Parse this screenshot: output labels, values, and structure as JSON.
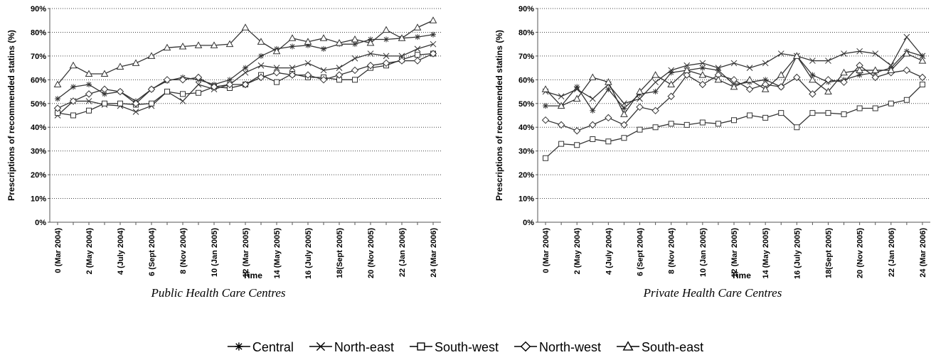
{
  "chart_data": [
    {
      "type": "line",
      "title": "Public Health Care Centres",
      "xlabel": "Time",
      "ylabel": "Prescriptions of recommended statins (%)",
      "categories": [
        "0 (Mar 2004)",
        null,
        "2 (May 2004)",
        null,
        "4 (July 2004)",
        null,
        "6 (Sept 2004)",
        null,
        "8 (Nov 2004)",
        null,
        "10 (Jan 2005)",
        null,
        "12 (Mar 2005)",
        null,
        "14 (May 2005)",
        null,
        "16 (July 2005)",
        null,
        "18(Sept 2005)",
        null,
        "20 (Nov 2005)",
        null,
        "22 (Jan 2006)",
        null,
        "24 (Mar 2006)"
      ],
      "ylim": [
        0,
        90
      ],
      "yticks": [
        {
          "value": 0,
          "label": "0%"
        },
        {
          "value": 10,
          "label": "10%"
        },
        {
          "value": 20,
          "label": "20%"
        },
        {
          "value": 30,
          "label": "30%"
        },
        {
          "value": 40,
          "label": "40%"
        },
        {
          "value": 50,
          "label": "50%"
        },
        {
          "value": 60,
          "label": "60%"
        },
        {
          "value": 70,
          "label": "70%"
        },
        {
          "value": 80,
          "label": "80%"
        },
        {
          "value": 90,
          "label": "90%"
        }
      ],
      "grid": true,
      "series": [
        {
          "name": "Central",
          "marker": "star",
          "color": "#333333",
          "values": [
            52,
            57,
            58,
            54,
            55,
            51,
            56,
            59.5,
            61,
            60,
            58,
            60,
            65,
            70,
            73,
            74,
            74.5,
            73,
            75,
            75,
            77,
            77,
            77.5,
            78,
            79
          ]
        },
        {
          "name": "North-east",
          "marker": "x",
          "color": "#333333",
          "values": [
            45,
            51,
            51,
            49.5,
            49,
            46.5,
            49,
            55,
            51,
            58,
            56,
            58,
            63,
            66,
            65,
            65,
            67,
            64,
            65,
            69,
            71,
            70,
            70,
            73,
            75
          ]
        },
        {
          "name": "South-west",
          "marker": "square",
          "color": "#333333",
          "values": [
            46,
            45,
            47,
            50,
            50,
            49.5,
            50,
            55,
            54,
            54.5,
            57,
            56.5,
            58,
            62,
            59,
            62.5,
            61,
            61,
            60,
            60,
            65,
            66,
            68.5,
            70.5,
            71
          ]
        },
        {
          "name": "North-west",
          "marker": "diamond",
          "color": "#333333",
          "values": [
            48,
            51,
            54,
            56,
            55,
            50,
            56,
            60,
            60,
            61,
            57,
            58,
            58,
            61,
            63,
            62,
            62,
            60,
            62,
            64,
            66,
            67,
            68,
            68,
            71
          ]
        },
        {
          "name": "South-east",
          "marker": "triangle",
          "color": "#333333",
          "values": [
            58,
            66,
            62.5,
            62.5,
            65.5,
            67,
            70,
            73.5,
            74,
            74.5,
            74.5,
            75,
            82,
            76,
            72,
            77.5,
            76,
            77.5,
            75.5,
            77,
            75.5,
            81,
            77.5,
            82,
            85
          ]
        }
      ]
    },
    {
      "type": "line",
      "title": "Private Health Care Centres",
      "xlabel": "Time",
      "ylabel": "Prescriptions of recommended statins (%)",
      "categories": [
        "0 (Mar 2004)",
        null,
        "2 (May 2004)",
        null,
        "4 (July 2004)",
        null,
        "6 (Sept 2004)",
        null,
        "8 (Nov 2004)",
        null,
        "10 (Jan 2005)",
        null,
        "12 (Mar 2005)",
        null,
        "14 (May 2005)",
        null,
        "16 (July 2005)",
        null,
        "18(Sept 2005)",
        null,
        "20 (Nov 2005)",
        null,
        "22 (Jan 2006)",
        null,
        "24 (Mar 2006)"
      ],
      "ylim": [
        0,
        90
      ],
      "yticks": [
        {
          "value": 0,
          "label": "0%"
        },
        {
          "value": 10,
          "label": "10%"
        },
        {
          "value": 20,
          "label": "20%"
        },
        {
          "value": 30,
          "label": "30%"
        },
        {
          "value": 40,
          "label": "40%"
        },
        {
          "value": 50,
          "label": "50%"
        },
        {
          "value": 60,
          "label": "60%"
        },
        {
          "value": 70,
          "label": "70%"
        },
        {
          "value": 80,
          "label": "80%"
        },
        {
          "value": 90,
          "label": "90%"
        }
      ],
      "grid": true,
      "series": [
        {
          "marker": "star",
          "color": "#333333",
          "values": [
            49,
            49,
            57,
            47,
            56,
            48,
            54,
            55,
            63,
            64,
            65,
            64,
            58,
            59,
            60,
            57,
            70,
            62,
            59,
            60,
            62,
            63,
            65,
            72,
            70
          ]
        },
        {
          "marker": "x",
          "color": "#333333",
          "values": [
            55,
            53,
            56,
            52,
            58,
            50,
            52,
            59,
            64,
            66,
            67,
            65,
            67,
            65,
            67,
            71,
            70,
            68,
            68,
            71,
            72,
            71,
            66,
            78,
            70
          ]
        },
        {
          "marker": "square",
          "color": "#333333",
          "values": [
            27,
            33,
            32.5,
            35,
            34,
            35.5,
            39,
            40,
            41.5,
            41,
            42,
            41.5,
            43,
            45,
            44,
            46,
            40,
            46,
            46,
            45.5,
            48,
            48,
            50,
            51.5,
            58
          ]
        },
        {
          "marker": "diamond",
          "color": "#333333",
          "values": [
            43,
            41,
            38.5,
            41,
            44,
            41,
            48.5,
            47,
            53,
            62,
            58,
            62,
            60,
            56,
            58,
            57,
            61,
            54,
            60,
            59,
            66,
            61,
            63,
            64,
            61
          ]
        },
        {
          "marker": "triangle",
          "color": "#333333",
          "values": [
            56,
            49,
            52,
            61,
            59,
            45.5,
            55,
            62,
            58,
            64,
            62,
            60,
            57,
            60,
            56,
            62,
            70,
            60,
            55,
            63,
            64,
            64,
            64,
            71,
            68
          ]
        }
      ]
    }
  ]
}
